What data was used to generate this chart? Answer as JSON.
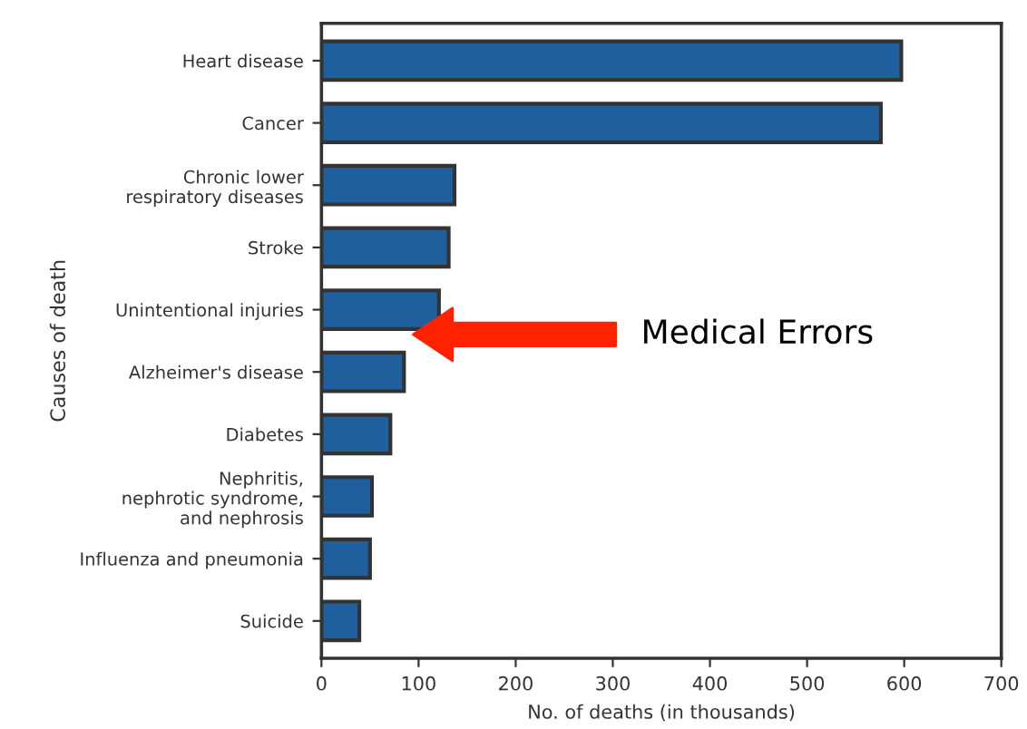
{
  "chart_data": {
    "type": "bar",
    "orientation": "horizontal",
    "xlabel": "No. of deaths (in thousands)",
    "ylabel": "Causes of death",
    "categories": [
      "Heart disease",
      "Cancer",
      "Chronic lower\nrespiratory diseases",
      "Stroke",
      "Unintentional injuries",
      "Alzheimer's disease",
      "Diabetes",
      "Nephritis,\nnephrotic syndrome,\nand nephrosis",
      "Influenza and pneumonia",
      "Suicide"
    ],
    "values": [
      597,
      576,
      137,
      131,
      121,
      85,
      71,
      52,
      50,
      39
    ],
    "color": "#1f5f9e",
    "xlim": [
      0,
      700
    ],
    "xticks": [
      0,
      100,
      200,
      300,
      400,
      500,
      600,
      700
    ],
    "grid": false,
    "legend": false,
    "annotations": [
      "Medical Errors"
    ]
  }
}
